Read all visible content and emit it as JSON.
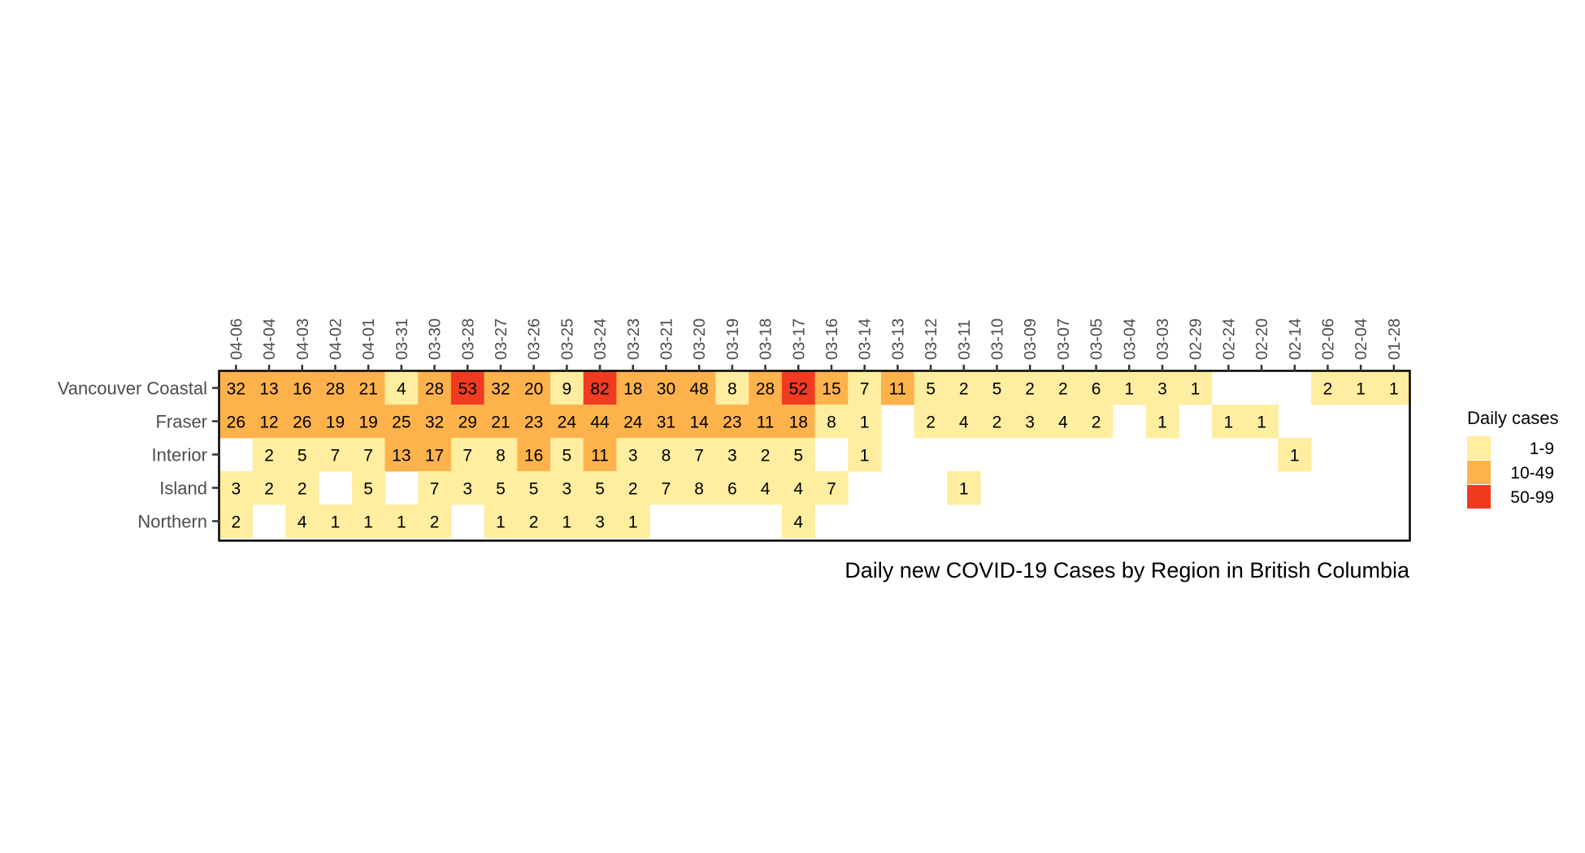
{
  "chart_data": {
    "type": "heatmap",
    "caption": "Daily new COVID-19 Cases by Region in British Columbia",
    "x": [
      "04-06",
      "04-04",
      "04-03",
      "04-02",
      "04-01",
      "03-31",
      "03-30",
      "03-28",
      "03-27",
      "03-26",
      "03-25",
      "03-24",
      "03-23",
      "03-21",
      "03-20",
      "03-19",
      "03-18",
      "03-17",
      "03-16",
      "03-14",
      "03-13",
      "03-12",
      "03-11",
      "03-10",
      "03-09",
      "03-07",
      "03-05",
      "03-04",
      "03-03",
      "02-29",
      "02-24",
      "02-20",
      "02-14",
      "02-06",
      "02-04",
      "01-28"
    ],
    "y": [
      "Vancouver Coastal",
      "Fraser",
      "Interior",
      "Island",
      "Northern"
    ],
    "values": [
      [
        32,
        13,
        16,
        28,
        21,
        4,
        28,
        53,
        32,
        20,
        9,
        82,
        18,
        30,
        48,
        8,
        28,
        52,
        15,
        7,
        11,
        5,
        2,
        5,
        2,
        2,
        6,
        1,
        3,
        1,
        null,
        null,
        null,
        2,
        1,
        1
      ],
      [
        26,
        12,
        26,
        19,
        19,
        25,
        32,
        29,
        21,
        23,
        24,
        44,
        24,
        31,
        14,
        23,
        11,
        18,
        8,
        1,
        null,
        2,
        4,
        2,
        3,
        4,
        2,
        null,
        1,
        null,
        1,
        1,
        null,
        null,
        null,
        null
      ],
      [
        null,
        2,
        5,
        7,
        7,
        13,
        17,
        7,
        8,
        16,
        5,
        11,
        3,
        8,
        7,
        3,
        2,
        5,
        null,
        1,
        null,
        null,
        null,
        null,
        null,
        null,
        null,
        null,
        null,
        null,
        null,
        null,
        1,
        null,
        null,
        null
      ],
      [
        3,
        2,
        2,
        null,
        5,
        null,
        7,
        3,
        5,
        5,
        3,
        5,
        2,
        7,
        8,
        6,
        4,
        4,
        7,
        null,
        null,
        null,
        1,
        null,
        null,
        null,
        null,
        null,
        null,
        null,
        null,
        null,
        null,
        null,
        null,
        null
      ],
      [
        2,
        null,
        4,
        1,
        1,
        1,
        2,
        null,
        1,
        2,
        1,
        3,
        1,
        null,
        null,
        null,
        null,
        4,
        null,
        null,
        null,
        null,
        null,
        null,
        null,
        null,
        null,
        null,
        null,
        null,
        null,
        null,
        null,
        null,
        null,
        null
      ]
    ],
    "legend": {
      "title": "Daily cases",
      "items": [
        {
          "label": "1-9",
          "color": "#FFEDA0"
        },
        {
          "label": "10-49",
          "color": "#FEB24C"
        },
        {
          "label": "50-99",
          "color": "#F03B20"
        }
      ]
    },
    "x_axis_position": "top",
    "grid": false,
    "legend_placement": "right"
  }
}
